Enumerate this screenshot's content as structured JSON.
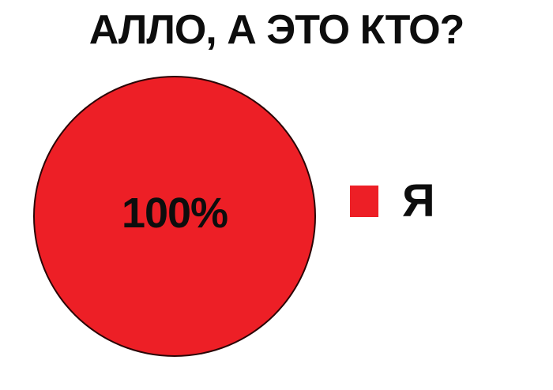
{
  "title": {
    "text": "АЛЛО, А ЭТО КТО?",
    "color": "#0d0d0d"
  },
  "chart_data": {
    "type": "pie",
    "title": "АЛЛО, А ЭТО КТО?",
    "slices": [
      {
        "label": "Я",
        "value": 100,
        "percent_label": "100%",
        "color": "#ed1f26"
      }
    ],
    "legend_position": "right",
    "slice_outline_color": "#2a0506",
    "background_color": "#ffffff",
    "text_color": "#0d0d0d"
  },
  "legend": {
    "items": [
      {
        "label": "Я",
        "swatch_color": "#ed1f26"
      }
    ]
  }
}
